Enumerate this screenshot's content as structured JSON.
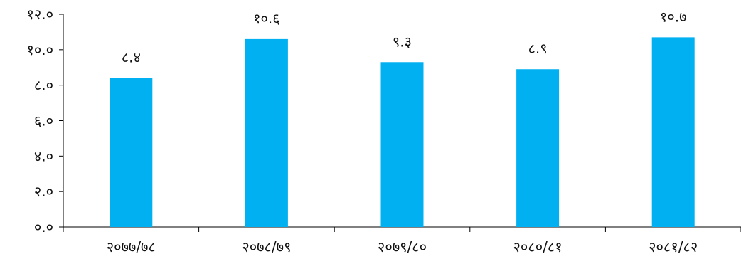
{
  "chart_data": {
    "type": "bar",
    "title": "",
    "xlabel": "",
    "ylabel": "",
    "categories": [
      "२०७७/७८",
      "२०७८/७९",
      "२०७९/८०",
      "२०८०/८१",
      "२०८१/८२"
    ],
    "values": [
      8.4,
      10.6,
      9.3,
      8.9,
      10.7
    ],
    "data_labels": [
      "८.४",
      "१०.६",
      "९.३",
      "८.९",
      "१०.७"
    ],
    "ylim": [
      0,
      12
    ],
    "yticks": [
      0,
      2,
      4,
      6,
      8,
      10,
      12
    ],
    "ytick_labels": [
      "०.०",
      "२.०",
      "४.०",
      "६.०",
      "८.०",
      "१०.०",
      "१२.०"
    ],
    "grid": false,
    "bar_color": "#00B0F0"
  }
}
